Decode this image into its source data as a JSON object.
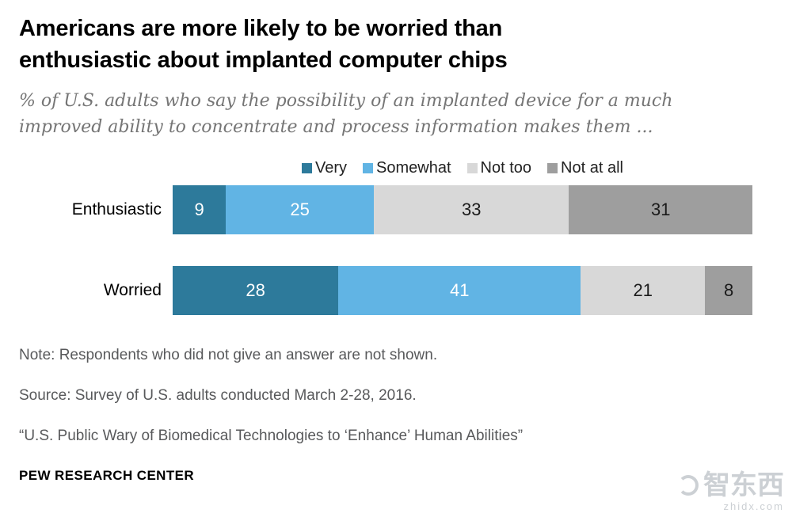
{
  "header": {
    "title_line1": "Americans are more likely to be worried than",
    "title_line2": "enthusiastic about implanted computer chips",
    "subtitle_line1": "% of U.S. adults who say the possibility of an implanted device for a much",
    "subtitle_line2": "improved ability to concentrate and process information makes them ..."
  },
  "chart_data": {
    "type": "bar",
    "orientation": "horizontal-stacked",
    "categories": [
      "Enthusiastic",
      "Worried"
    ],
    "series": [
      {
        "name": "Very",
        "color": "#2D7A9B",
        "label_color": "#ffffff",
        "values": [
          9,
          28
        ]
      },
      {
        "name": "Somewhat",
        "color": "#61B4E4",
        "label_color": "#ffffff",
        "values": [
          25,
          41
        ]
      },
      {
        "name": "Not too",
        "color": "#D8D8D8",
        "label_color": "#1a1a1a",
        "values": [
          33,
          21
        ]
      },
      {
        "name": "Not at all",
        "color": "#9E9E9E",
        "label_color": "#1a1a1a",
        "values": [
          31,
          8
        ]
      }
    ],
    "xlim": [
      0,
      98
    ],
    "legend_position": "top",
    "value_labels": true,
    "title": "Americans are more likely to be worried than enthusiastic about implanted computer chips"
  },
  "footer": {
    "note": "Note: Respondents who did not give an answer are not shown.",
    "source": "Source: Survey of U.S. adults conducted March 2-28, 2016.",
    "report": "“U.S. Public Wary of Biomedical Technologies to ‘Enhance’ Human Abilities”",
    "brand": "PEW RESEARCH CENTER"
  },
  "watermark": {
    "logo_text": "智东西",
    "url": "zhidx.com"
  }
}
